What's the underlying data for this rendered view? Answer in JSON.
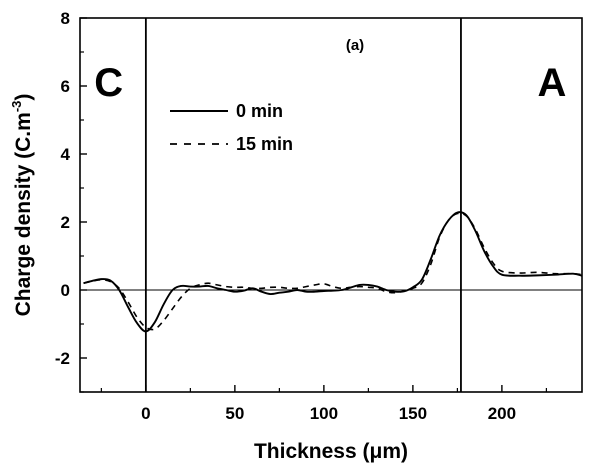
{
  "chart_data": {
    "type": "line",
    "title": "",
    "panel_label": "(a)",
    "xlabel_main": "Thickness (",
    "xlabel_mu": "μ",
    "xlabel_end": "m)",
    "ylabel_main": "Charge density (C.m",
    "ylabel_exp": "-3",
    "ylabel_end": ")",
    "xlim": [
      -37,
      245
    ],
    "ylim": [
      -3,
      8
    ],
    "x_ticks": [
      0,
      50,
      100,
      150,
      200
    ],
    "x_tick_labels": [
      "0",
      "50",
      "100",
      "150",
      "200"
    ],
    "y_ticks": [
      -2,
      0,
      2,
      4,
      6,
      8
    ],
    "y_tick_labels": [
      "-2",
      "0",
      "2",
      "4",
      "6",
      "8"
    ],
    "zero_line": 0,
    "electrode_lines": [
      0,
      177
    ],
    "region_labels": [
      {
        "text": "C",
        "x": -29,
        "y": 5.7
      },
      {
        "text": "A",
        "x": 220,
        "y": 5.7
      }
    ],
    "legend": {
      "placement": "upper-left inside"
    },
    "series": [
      {
        "name": "0 min",
        "style": "solid",
        "x": [
          -35,
          -30,
          -25,
          -20,
          -15,
          -10,
          -5,
          0,
          5,
          10,
          15,
          20,
          25,
          30,
          35,
          40,
          45,
          50,
          55,
          60,
          65,
          70,
          75,
          80,
          85,
          90,
          95,
          100,
          105,
          110,
          115,
          120,
          125,
          130,
          135,
          140,
          145,
          150,
          155,
          160,
          165,
          170,
          175,
          180,
          185,
          190,
          195,
          200,
          210,
          220,
          230,
          240,
          245
        ],
        "y": [
          0.2,
          0.27,
          0.32,
          0.28,
          0.0,
          -0.5,
          -0.97,
          -1.22,
          -0.95,
          -0.42,
          0.0,
          0.12,
          0.1,
          0.1,
          0.12,
          0.05,
          0.0,
          -0.05,
          -0.02,
          0.05,
          -0.05,
          -0.12,
          -0.08,
          -0.05,
          0.0,
          -0.05,
          -0.05,
          -0.03,
          -0.02,
          0.0,
          0.07,
          0.15,
          0.15,
          0.1,
          0.0,
          -0.05,
          -0.04,
          0.08,
          0.3,
          0.9,
          1.6,
          2.05,
          2.28,
          2.2,
          1.75,
          1.15,
          0.7,
          0.45,
          0.42,
          0.43,
          0.45,
          0.48,
          0.42
        ]
      },
      {
        "name": "15 min",
        "style": "dashed",
        "x": [
          -35,
          -30,
          -25,
          -20,
          -15,
          -10,
          -5,
          0,
          5,
          10,
          15,
          20,
          25,
          30,
          35,
          40,
          45,
          50,
          55,
          60,
          65,
          70,
          75,
          80,
          85,
          90,
          95,
          100,
          105,
          110,
          115,
          120,
          125,
          130,
          135,
          140,
          145,
          150,
          155,
          160,
          165,
          170,
          175,
          180,
          185,
          190,
          195,
          200,
          210,
          220,
          230,
          240,
          245
        ],
        "y": [
          0.2,
          0.26,
          0.3,
          0.25,
          0.05,
          -0.35,
          -0.8,
          -1.1,
          -1.15,
          -0.9,
          -0.55,
          -0.2,
          0.05,
          0.15,
          0.2,
          0.15,
          0.1,
          0.08,
          0.08,
          0.05,
          0.05,
          0.08,
          0.08,
          0.05,
          0.05,
          0.1,
          0.15,
          0.18,
          0.1,
          0.05,
          0.08,
          0.1,
          0.08,
          0.05,
          -0.05,
          -0.08,
          -0.03,
          0.05,
          0.2,
          0.75,
          1.55,
          2.05,
          2.25,
          2.18,
          1.8,
          1.25,
          0.8,
          0.55,
          0.5,
          0.52,
          0.48,
          0.48,
          0.45
        ]
      }
    ]
  }
}
